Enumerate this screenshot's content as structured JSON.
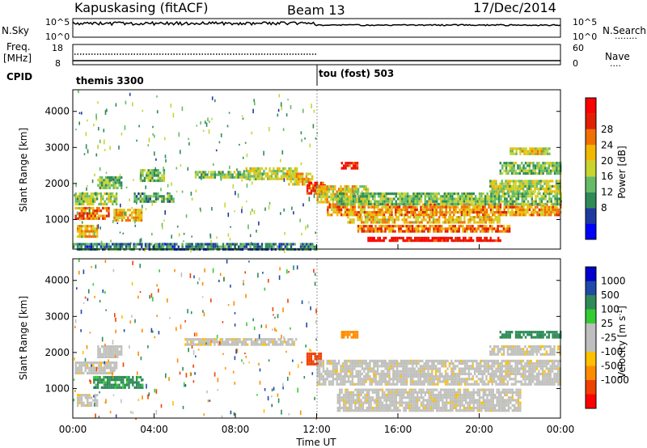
{
  "header": {
    "station": "Kapuskasing (fitACF)",
    "beam": "Beam 13",
    "date": "17/Dec/2014"
  },
  "noise_panel": {
    "left_label": "N.Sky",
    "right_label": "N.Search",
    "right_legend": "........",
    "left_ticks": [
      "10^5",
      "10^0"
    ],
    "right_ticks": [
      "10^5",
      "10^0"
    ]
  },
  "freq_panel": {
    "left_label_1": "Freq.",
    "left_label_2": "[MHz]",
    "right_label": "Nave",
    "right_legend": "....",
    "left_ticks": [
      "18",
      "8"
    ],
    "right_ticks": [
      "60",
      "0"
    ]
  },
  "cpid": {
    "label": "CPID",
    "segments": [
      {
        "name": "themis 3300",
        "start_hour": 0
      },
      {
        "name": "tou (fost) 503",
        "start_hour": 12
      }
    ]
  },
  "colors": {
    "power_scale": [
      "#0000ff",
      "#1f3a9e",
      "#2e8b57",
      "#66bb66",
      "#c8d430",
      "#f0b800",
      "#f07000",
      "#e02000",
      "#ff0000"
    ],
    "velocity_scale": [
      "#ff0000",
      "#f04000",
      "#ff8c00",
      "#ffc000",
      "#bebebe",
      "#bebebe",
      "#33cc33",
      "#2e8b57",
      "#1f4aa8",
      "#0000cc"
    ],
    "background_scatter": "#c0c0bc",
    "cpid_divider": "#555555"
  },
  "chart_data": [
    {
      "type": "heatmap",
      "panel": "power",
      "ylabel": "Slant Range [km]",
      "ylim": [
        180,
        4600
      ],
      "xlim_hours": [
        0,
        24
      ],
      "yticks": [
        "1000",
        "2000",
        "3000",
        "4000"
      ],
      "colorbar_label": "Power [dB]",
      "colorbar_ticks": [
        "8",
        "12",
        "16",
        "20",
        "24",
        "28"
      ],
      "colorbar_range": [
        0,
        30
      ],
      "echo_bands": [
        {
          "t0": 0.1,
          "t1": 1.8,
          "r0": 1050,
          "r1": 1350,
          "level": 22
        },
        {
          "t0": 0.1,
          "t1": 2.2,
          "r0": 1450,
          "r1": 1750,
          "level": 14
        },
        {
          "t0": 0.2,
          "t1": 1.2,
          "r0": 550,
          "r1": 850,
          "level": 18
        },
        {
          "t0": 1.2,
          "t1": 2.4,
          "r0": 1850,
          "r1": 2200,
          "level": 12
        },
        {
          "t0": 2.0,
          "t1": 3.4,
          "r0": 950,
          "r1": 1300,
          "level": 18
        },
        {
          "t0": 3.3,
          "t1": 4.5,
          "r0": 2100,
          "r1": 2400,
          "level": 12
        },
        {
          "t0": 3.0,
          "t1": 5.0,
          "r0": 1500,
          "r1": 1750,
          "level": 10
        },
        {
          "t0": 6.0,
          "t1": 8.5,
          "r0": 2150,
          "r1": 2350,
          "level": 13
        },
        {
          "t0": 8.5,
          "t1": 11.0,
          "r0": 2150,
          "r1": 2450,
          "level": 15
        },
        {
          "t0": 10.5,
          "t1": 11.8,
          "r0": 1950,
          "r1": 2300,
          "level": 18
        },
        {
          "t0": 11.5,
          "t1": 12.4,
          "r0": 1700,
          "r1": 2050,
          "level": 24
        },
        {
          "t0": 12.0,
          "t1": 14.5,
          "r0": 1450,
          "r1": 1950,
          "level": 16
        },
        {
          "t0": 13.2,
          "t1": 14.0,
          "r0": 2400,
          "r1": 2600,
          "level": 26
        },
        {
          "t0": 12.5,
          "t1": 24.0,
          "r0": 1150,
          "r1": 1450,
          "level": 20
        },
        {
          "t0": 13.0,
          "t1": 24.0,
          "r0": 1450,
          "r1": 1750,
          "level": 12
        },
        {
          "t0": 13.5,
          "t1": 21.0,
          "r0": 900,
          "r1": 1100,
          "level": 18
        },
        {
          "t0": 14.0,
          "t1": 21.5,
          "r0": 700,
          "r1": 850,
          "level": 22
        },
        {
          "t0": 14.5,
          "t1": 21.0,
          "r0": 380,
          "r1": 520,
          "level": 28
        },
        {
          "t0": 20.5,
          "t1": 24.0,
          "r0": 1800,
          "r1": 2100,
          "level": 14
        },
        {
          "t0": 21.0,
          "t1": 24.0,
          "r0": 2300,
          "r1": 2600,
          "level": 12
        },
        {
          "t0": 21.5,
          "t1": 23.5,
          "r0": 2800,
          "r1": 3000,
          "level": 16
        },
        {
          "t0": 0.0,
          "t1": 12.0,
          "r0": 180,
          "r1": 350,
          "level": 8
        }
      ]
    },
    {
      "type": "heatmap",
      "panel": "velocity",
      "ylabel": "Slant Range [km]",
      "xlabel": "Time UT",
      "ylim": [
        180,
        4600
      ],
      "xlim_hours": [
        0,
        24
      ],
      "yticks": [
        "1000",
        "2000",
        "3000",
        "4000"
      ],
      "xticks": [
        "00:00",
        "04:00",
        "08:00",
        "12:00",
        "16:00",
        "20:00",
        "00:00"
      ],
      "colorbar_label": "Velocity [m s^-1]",
      "colorbar_ticks": [
        "1000",
        "500",
        "100",
        "25",
        "-25",
        "-100",
        "-500",
        "-1000"
      ],
      "echo_bands": [
        {
          "t0": 0.1,
          "t1": 2.2,
          "r0": 1450,
          "r1": 1750,
          "vel": 0
        },
        {
          "t0": 1.0,
          "t1": 3.4,
          "r0": 1050,
          "r1": 1350,
          "vel": 120
        },
        {
          "t0": 0.2,
          "t1": 1.2,
          "r0": 550,
          "r1": 850,
          "vel": 0
        },
        {
          "t0": 1.2,
          "t1": 2.4,
          "r0": 1850,
          "r1": 2200,
          "vel": 0
        },
        {
          "t0": 5.5,
          "t1": 11.0,
          "r0": 2200,
          "r1": 2400,
          "vel": 0
        },
        {
          "t0": 11.5,
          "t1": 12.2,
          "r0": 1700,
          "r1": 2000,
          "vel": -400
        },
        {
          "t0": 12.0,
          "t1": 24.0,
          "r0": 1100,
          "r1": 1800,
          "vel": 0
        },
        {
          "t0": 13.0,
          "t1": 22.0,
          "r0": 400,
          "r1": 1000,
          "vel": 0
        },
        {
          "t0": 20.5,
          "t1": 24.0,
          "r0": 1950,
          "r1": 2200,
          "vel": 0
        },
        {
          "t0": 21.0,
          "t1": 24.0,
          "r0": 2400,
          "r1": 2600,
          "vel": 150
        },
        {
          "t0": 13.2,
          "t1": 14.0,
          "r0": 2400,
          "r1": 2600,
          "vel": -150
        }
      ]
    }
  ],
  "footer": {
    "xlabel": "Time UT"
  }
}
